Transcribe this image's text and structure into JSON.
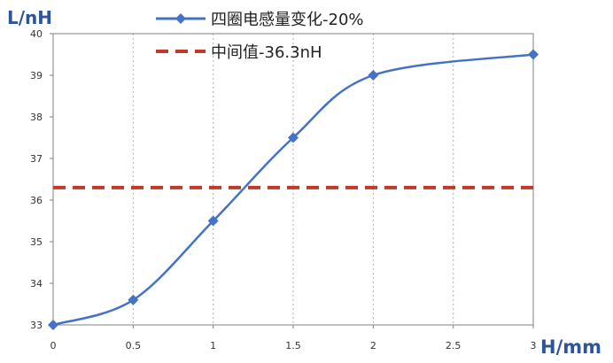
{
  "chart_data": {
    "type": "line",
    "xlabel": "H/mm",
    "ylabel": "L/nH",
    "xlim": [
      0,
      3
    ],
    "ylim": [
      33,
      40
    ],
    "x_ticks": [
      "0",
      "0.5",
      "1",
      "1.5",
      "2",
      "2.5",
      "3"
    ],
    "y_ticks": [
      "33",
      "34",
      "35",
      "36",
      "37",
      "38",
      "39",
      "40"
    ],
    "grid": "vertical dotted",
    "legend_position": "top",
    "series": [
      {
        "name": "四圈电感量变化-20%",
        "color": "#4472C4",
        "marker": "diamond",
        "x": [
          0,
          0.5,
          1,
          1.5,
          2,
          3
        ],
        "y": [
          33.0,
          33.6,
          35.5,
          37.5,
          39.0,
          39.5
        ]
      },
      {
        "name": "中间值-36.3nH",
        "color": "#C0392B",
        "style": "dashed",
        "x": [
          0,
          3
        ],
        "y": [
          36.3,
          36.3
        ]
      }
    ]
  }
}
